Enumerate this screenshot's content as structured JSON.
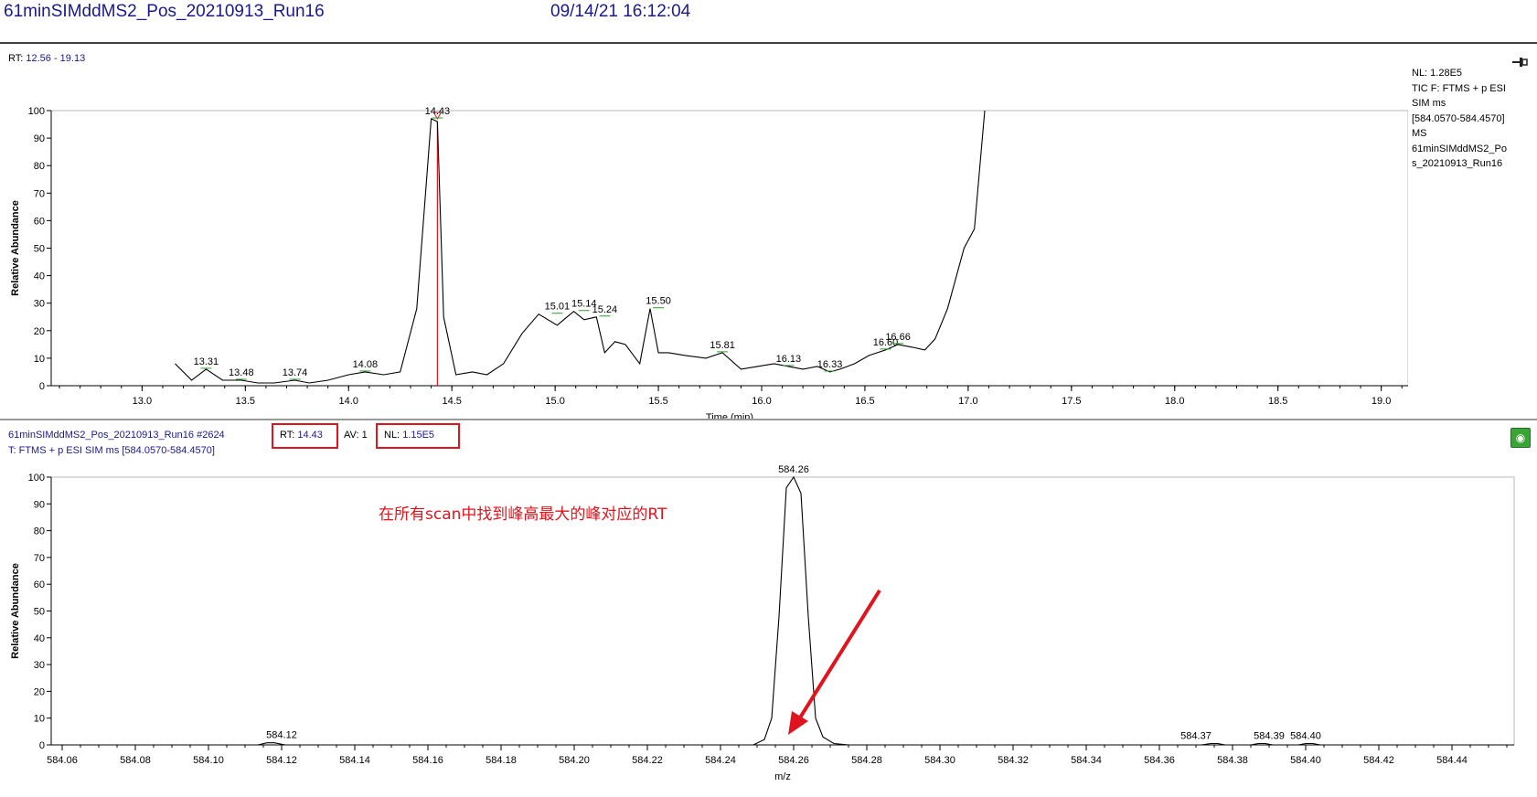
{
  "window": {
    "file_title": "61minSIMddMS2_Pos_20210913_Run16",
    "datetime": "09/14/21 16:12:04"
  },
  "chromatogram": {
    "rt_label": "RT:",
    "rt_range": "12.56 - 19.13",
    "info_lines": [
      "NL: 1.28E5",
      "TIC F: FTMS + p ESI",
      "SIM ms",
      "[584.0570-584.4570]",
      "MS",
      "61minSIMddMS2_Po",
      "s_20210913_Run16"
    ],
    "pin_icon": "pin-icon"
  },
  "spectrum": {
    "scan_header": "61minSIMddMS2_Pos_20210913_Run16 #2624",
    "rt_label": "RT:",
    "rt_value": "14.43",
    "av_label": "AV:",
    "av_value": "1",
    "nl_label": "NL:",
    "nl_value": "1.15E5",
    "filter": "T: FTMS + p ESI SIM ms [584.0570-584.4570]",
    "legend_icon": "legend-toggle-icon"
  },
  "annotation": {
    "text": "在所有scan中找到峰高最大的峰对应的RT",
    "color": "#e0141c"
  },
  "colors": {
    "trace": "#000000",
    "marker": "#e0141c",
    "header_text": "#1a1a8c",
    "label_tick": "#2a9d2a"
  },
  "chart_data": [
    {
      "type": "line",
      "title": "",
      "xlabel": "Time (min)",
      "ylabel": "Relative Abundance",
      "xlim": [
        12.56,
        19.13
      ],
      "ylim": [
        0,
        100
      ],
      "x_ticks": [
        13.0,
        13.5,
        14.0,
        14.5,
        15.0,
        15.5,
        16.0,
        16.5,
        17.0,
        17.5,
        18.0,
        18.5,
        19.0
      ],
      "y_ticks": [
        0,
        10,
        20,
        30,
        40,
        50,
        60,
        70,
        80,
        90,
        100
      ],
      "x_tick_labels": [
        "13.0",
        "13.5",
        "14.0",
        "14.5",
        "15.0",
        "15.5",
        "16.0",
        "16.5",
        "17.0",
        "17.5",
        "18.0",
        "18.5",
        "19.0"
      ],
      "y_tick_labels": [
        "0",
        "10",
        "20",
        "30",
        "40",
        "50",
        "60",
        "70",
        "80",
        "90",
        "100"
      ],
      "series": [
        {
          "x": [
            13.16,
            13.24,
            13.31,
            13.39,
            13.48,
            13.56,
            13.64,
            13.74,
            13.81,
            13.9,
            14.0,
            14.08,
            14.17,
            14.25,
            14.33,
            14.4,
            14.43,
            14.46,
            14.52,
            14.6,
            14.67,
            14.75,
            14.84,
            14.92,
            15.01,
            15.09,
            15.14,
            15.2,
            15.24,
            15.29,
            15.34,
            15.41,
            15.46,
            15.5,
            15.55,
            15.63,
            15.73,
            15.81,
            15.9,
            15.98,
            16.06,
            16.13,
            16.2,
            16.27,
            16.33,
            16.38,
            16.45,
            16.52,
            16.6,
            16.66,
            16.73,
            16.79,
            16.84,
            16.9,
            16.98,
            17.03,
            17.08
          ],
          "y": [
            8,
            2,
            6,
            2,
            2,
            1,
            1,
            2,
            1,
            2,
            4,
            5,
            4,
            5,
            28,
            97,
            96,
            25,
            4,
            5,
            4,
            8,
            19,
            26,
            22,
            27,
            24,
            25,
            12,
            16,
            15,
            8,
            28,
            12,
            12,
            11,
            10,
            12,
            6,
            7,
            8,
            7,
            6,
            7,
            5,
            6,
            8,
            11,
            13,
            15,
            14,
            13,
            17,
            28,
            50,
            57,
            100
          ]
        }
      ],
      "peak_labels": [
        {
          "x": 13.31,
          "y": 6,
          "label": "13.31"
        },
        {
          "x": 13.48,
          "y": 2,
          "label": "13.48"
        },
        {
          "x": 13.74,
          "y": 2,
          "label": "13.74"
        },
        {
          "x": 14.08,
          "y": 5,
          "label": "14.08"
        },
        {
          "x": 14.43,
          "y": 97,
          "label": "14.43"
        },
        {
          "x": 15.01,
          "y": 26,
          "label": "15.01"
        },
        {
          "x": 15.14,
          "y": 27,
          "label": "15.14"
        },
        {
          "x": 15.24,
          "y": 25,
          "label": "15.24"
        },
        {
          "x": 15.5,
          "y": 28,
          "label": "15.50"
        },
        {
          "x": 15.81,
          "y": 12,
          "label": "15.81"
        },
        {
          "x": 16.13,
          "y": 7,
          "label": "16.13"
        },
        {
          "x": 16.33,
          "y": 5,
          "label": "16.33"
        },
        {
          "x": 16.6,
          "y": 13,
          "label": "16.60"
        },
        {
          "x": 16.66,
          "y": 15,
          "label": "16.66"
        }
      ],
      "marker_rt": 14.43,
      "grid": false
    },
    {
      "type": "line",
      "title": "",
      "xlabel": "m/z",
      "ylabel": "Relative Abundance",
      "xlim": [
        584.057,
        584.457
      ],
      "ylim": [
        0,
        100
      ],
      "x_ticks": [
        584.06,
        584.08,
        584.1,
        584.12,
        584.14,
        584.16,
        584.18,
        584.2,
        584.22,
        584.24,
        584.26,
        584.28,
        584.3,
        584.32,
        584.34,
        584.36,
        584.38,
        584.4,
        584.42,
        584.44
      ],
      "y_ticks": [
        0,
        10,
        20,
        30,
        40,
        50,
        60,
        70,
        80,
        90,
        100
      ],
      "x_tick_labels": [
        "584.06",
        "584.08",
        "584.10",
        "584.12",
        "584.14",
        "584.16",
        "584.18",
        "584.20",
        "584.22",
        "584.24",
        "584.26",
        "584.28",
        "584.30",
        "584.32",
        "584.34",
        "584.36",
        "584.38",
        "584.40",
        "584.42",
        "584.44"
      ],
      "y_tick_labels": [
        "0",
        "10",
        "20",
        "30",
        "40",
        "50",
        "60",
        "70",
        "80",
        "90",
        "100"
      ],
      "series": [
        {
          "x": [
            584.057,
            584.1135,
            584.116,
            584.118,
            584.121,
            584.249,
            584.252,
            584.254,
            584.256,
            584.258,
            584.26,
            584.262,
            584.264,
            584.266,
            584.268,
            584.271,
            584.275,
            584.3715,
            584.374,
            584.376,
            584.378,
            584.385,
            584.387,
            584.389,
            584.391,
            584.398,
            584.4,
            584.402,
            584.404,
            584.457
          ],
          "y": [
            0,
            0,
            0.8,
            0.8,
            0,
            0,
            2,
            10,
            48,
            96,
            100,
            94,
            48,
            10,
            3,
            0.5,
            0,
            0,
            0.5,
            0.5,
            0,
            0,
            0.5,
            0.5,
            0,
            0,
            0.5,
            0.5,
            0,
            0
          ]
        }
      ],
      "peak_labels": [
        {
          "x": 584.12,
          "y": 0.8,
          "label": "584.12"
        },
        {
          "x": 584.26,
          "y": 100,
          "label": "584.26"
        },
        {
          "x": 584.37,
          "y": 0.5,
          "label": "584.37"
        },
        {
          "x": 584.39,
          "y": 0.5,
          "label": "584.39"
        },
        {
          "x": 584.4,
          "y": 0.5,
          "label": "584.40"
        }
      ],
      "grid": false
    }
  ]
}
